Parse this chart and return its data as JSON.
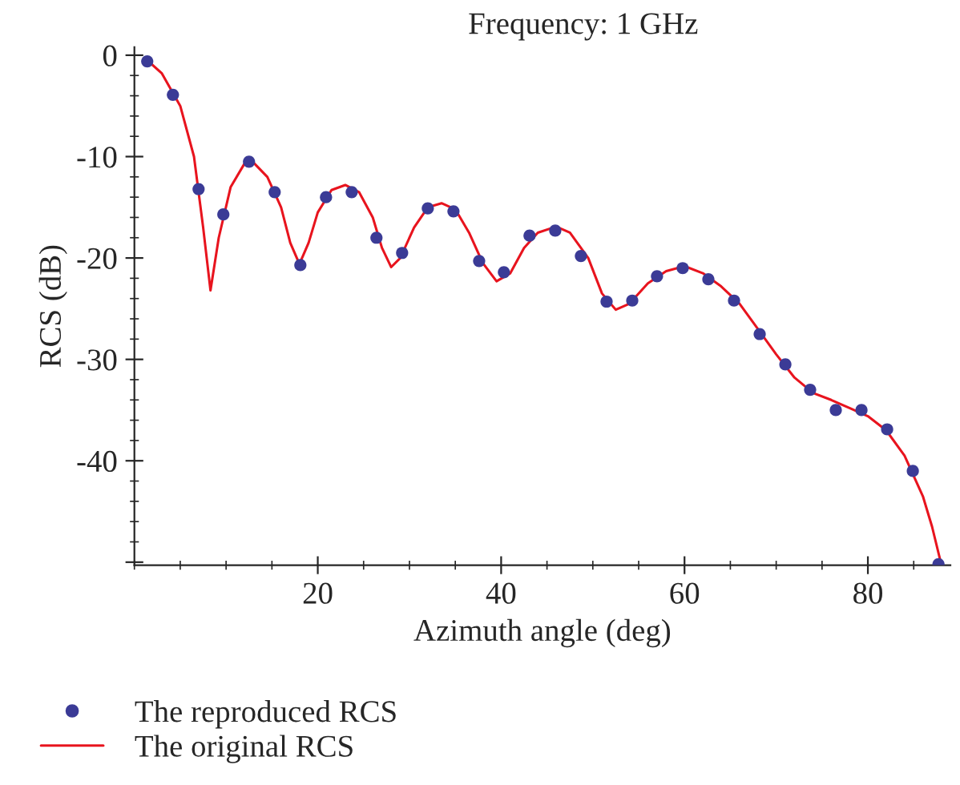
{
  "chart_data": {
    "type": "scatter",
    "title": "Frequency: 1 GHz",
    "xlabel": "Azimuth angle (deg)",
    "ylabel": "RCS (dB)",
    "xlim": [
      0,
      89
    ],
    "ylim": [
      -50.3,
      0.8
    ],
    "xticks": [
      20,
      40,
      60,
      80
    ],
    "yticks": [
      0,
      -10,
      -20,
      -30,
      -40,
      {
        "value": -50,
        "label": null
      }
    ],
    "legend": "bottom left",
    "grid": false,
    "series": [
      {
        "name": "The reproduced RCS",
        "color": "#3b3b96",
        "marker": "circle",
        "x": [
          1.4,
          4.2,
          7.0,
          9.7,
          12.5,
          15.3,
          18.1,
          20.9,
          23.7,
          26.4,
          29.2,
          32.0,
          34.8,
          37.6,
          40.3,
          43.1,
          45.9,
          48.7,
          51.5,
          54.3,
          57.0,
          59.8,
          62.6,
          65.4,
          68.2,
          71.0,
          73.7,
          76.5,
          79.3,
          82.1,
          84.9,
          87.7
        ],
        "values": [
          -0.6,
          -3.9,
          -13.2,
          -15.7,
          -10.5,
          -13.5,
          -20.7,
          -14.0,
          -13.5,
          -18.0,
          -19.5,
          -15.1,
          -15.4,
          -20.3,
          -21.4,
          -17.8,
          -17.3,
          -19.8,
          -24.3,
          -24.2,
          -21.8,
          -21.0,
          -22.1,
          -24.2,
          -27.5,
          -30.5,
          -33.0,
          -35.0,
          -35.0,
          -36.9,
          -41.0,
          -50.2
        ]
      },
      {
        "name": "The original RCS",
        "type": "line",
        "color": "#e8141e",
        "line_style": "solid",
        "x": [
          1.4,
          3,
          5,
          6.5,
          7.5,
          8.3,
          9.2,
          10.5,
          12,
          13,
          14.5,
          16,
          17,
          18,
          19,
          20,
          21.5,
          23,
          24.5,
          26,
          27,
          28,
          29,
          30.5,
          32,
          33.5,
          35,
          36.5,
          38,
          39.5,
          41,
          42.5,
          44,
          46,
          47.5,
          49.5,
          51,
          52.5,
          54,
          56,
          58,
          60,
          62,
          64,
          66,
          68,
          70,
          72,
          74,
          76,
          78,
          80,
          82,
          84,
          86,
          87,
          88
        ],
        "values": [
          -0.5,
          -1.8,
          -5,
          -10,
          -17,
          -23.2,
          -18,
          -13,
          -10.7,
          -10.6,
          -12,
          -15,
          -18.5,
          -20.6,
          -18.5,
          -15.5,
          -13.3,
          -12.8,
          -13.5,
          -16,
          -19,
          -20.9,
          -20,
          -17,
          -15,
          -14.6,
          -15.2,
          -17.5,
          -20.5,
          -22.3,
          -21.5,
          -19,
          -17.5,
          -16.9,
          -17.5,
          -20,
          -23.5,
          -25.1,
          -24.5,
          -22.5,
          -21.3,
          -20.8,
          -21.5,
          -22.8,
          -24.5,
          -27,
          -29.5,
          -31.8,
          -33.3,
          -34,
          -34.8,
          -35.6,
          -37,
          -39.5,
          -43.5,
          -46.5,
          -50.2
        ]
      }
    ]
  }
}
